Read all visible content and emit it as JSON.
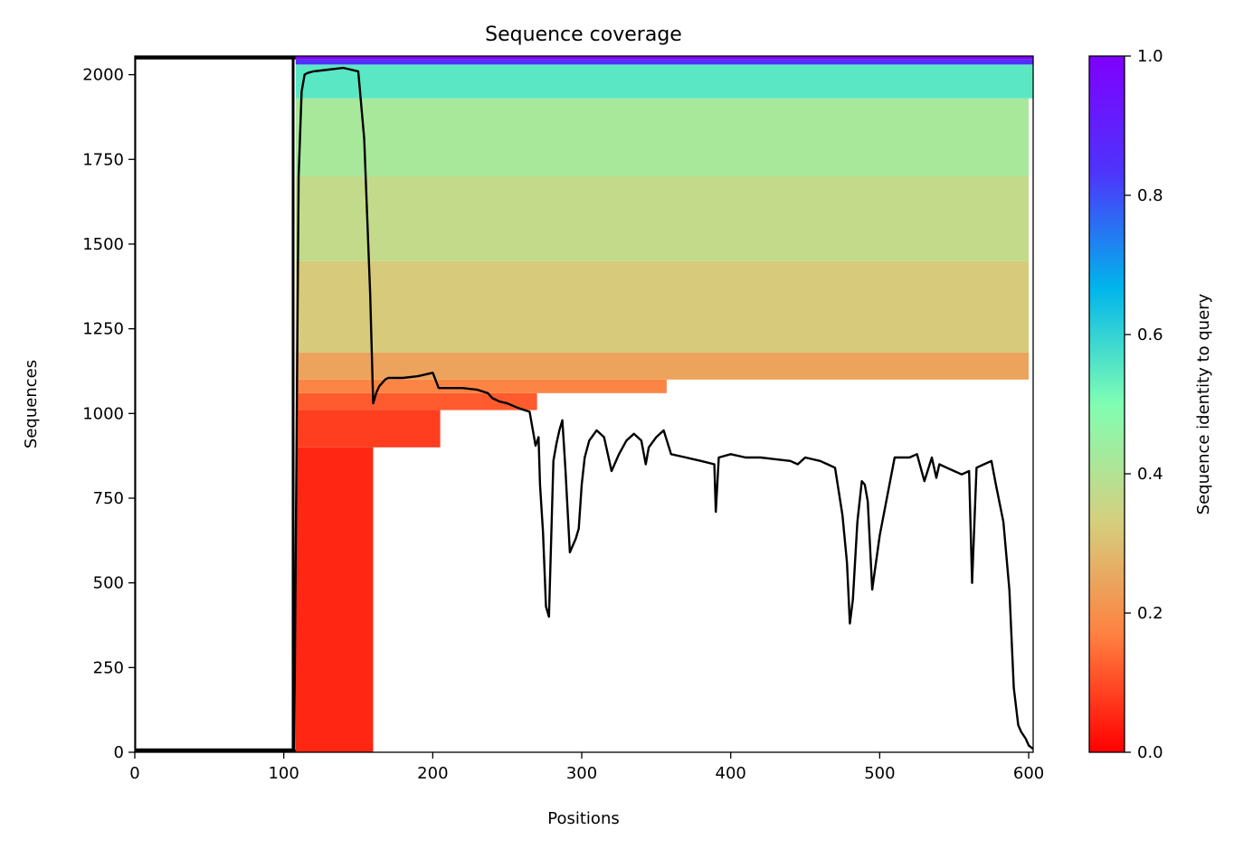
{
  "chart_data": {
    "type": "heatmap",
    "title": "Sequence coverage",
    "xlabel": "Positions",
    "ylabel": "Sequences",
    "xlim": [
      0,
      603
    ],
    "ylim": [
      0,
      2055
    ],
    "xticks": [
      0,
      100,
      200,
      300,
      400,
      500,
      600
    ],
    "yticks": [
      0,
      250,
      500,
      750,
      1000,
      1250,
      1500,
      1750,
      2000
    ],
    "grid": false,
    "colorbar": {
      "label": "Sequence identity to query",
      "range": [
        0,
        1
      ],
      "ticks": [
        "0.0",
        "0.2",
        "0.4",
        "0.6",
        "0.8",
        "1.0"
      ],
      "colormap": "rainbow_r",
      "colors": [
        "#ff0000",
        "#ff7f40",
        "#d4d07f",
        "#80feb3",
        "#00b5eb",
        "#4e34fb",
        "#7f00ff"
      ]
    },
    "coverage_blocks": [
      {
        "x": [
          108,
          160
        ],
        "y": [
          0,
          900
        ],
        "identity": 0.05
      },
      {
        "x": [
          108,
          205
        ],
        "y": [
          900,
          1010
        ],
        "identity": 0.08
      },
      {
        "x": [
          108,
          270
        ],
        "y": [
          1010,
          1060
        ],
        "identity": 0.12
      },
      {
        "x": [
          108,
          357
        ],
        "y": [
          1060,
          1100
        ],
        "identity": 0.18
      },
      {
        "x": [
          108,
          600
        ],
        "y": [
          1100,
          1180
        ],
        "identity": 0.24
      },
      {
        "x": [
          108,
          600
        ],
        "y": [
          1180,
          1450
        ],
        "identity": 0.32
      },
      {
        "x": [
          108,
          600
        ],
        "y": [
          1450,
          1700
        ],
        "identity": 0.37
      },
      {
        "x": [
          108,
          600
        ],
        "y": [
          1700,
          1930
        ],
        "identity": 0.42
      },
      {
        "x": [
          108,
          603
        ],
        "y": [
          1930,
          2030
        ],
        "identity": 0.55
      },
      {
        "x": [
          108,
          603
        ],
        "y": [
          2030,
          2045
        ],
        "identity": 0.85
      },
      {
        "x": [
          108,
          603
        ],
        "y": [
          2045,
          2055
        ],
        "identity": 1.0
      }
    ],
    "query_rows": [
      {
        "x": [
          0,
          108
        ],
        "y": [
          0,
          8
        ]
      },
      {
        "x": [
          0,
          108
        ],
        "y": [
          2045,
          2055
        ]
      }
    ],
    "coverage_line": {
      "x": [
        0,
        107,
        110,
        112,
        114,
        116,
        120,
        130,
        140,
        150,
        154,
        156,
        158,
        160,
        162,
        164,
        168,
        170,
        180,
        190,
        195,
        200,
        204,
        210,
        220,
        230,
        237,
        240,
        245,
        250,
        258,
        265,
        269,
        271,
        272,
        274,
        276,
        278,
        280,
        281,
        283,
        285,
        287,
        289,
        292,
        294,
        296,
        298,
        300,
        302,
        305,
        310,
        315,
        320,
        325,
        330,
        335,
        340,
        343,
        345,
        350,
        355,
        360,
        370,
        380,
        389,
        390,
        392,
        400,
        410,
        420,
        430,
        440,
        445,
        450,
        460,
        465,
        470,
        475,
        478,
        480,
        482,
        485,
        488,
        490,
        492,
        495,
        500,
        510,
        520,
        525,
        530,
        535,
        538,
        540,
        545,
        550,
        555,
        560,
        562,
        565,
        570,
        575,
        578,
        583,
        587,
        590,
        593,
        595,
        598,
        600,
        603
      ],
      "y": [
        8,
        8,
        1700,
        1950,
        2000,
        2005,
        2010,
        2015,
        2020,
        2010,
        1810,
        1580,
        1350,
        1030,
        1060,
        1080,
        1100,
        1105,
        1105,
        1110,
        1115,
        1120,
        1075,
        1075,
        1075,
        1070,
        1060,
        1045,
        1035,
        1030,
        1015,
        1005,
        905,
        930,
        790,
        650,
        430,
        400,
        710,
        860,
        910,
        950,
        980,
        840,
        590,
        610,
        630,
        660,
        790,
        870,
        920,
        950,
        930,
        830,
        880,
        920,
        940,
        920,
        850,
        900,
        930,
        950,
        880,
        870,
        860,
        850,
        710,
        870,
        880,
        870,
        870,
        865,
        860,
        850,
        870,
        860,
        850,
        840,
        700,
        560,
        380,
        450,
        680,
        800,
        790,
        740,
        480,
        640,
        870,
        870,
        880,
        800,
        870,
        810,
        850,
        840,
        830,
        820,
        830,
        500,
        840,
        850,
        860,
        790,
        680,
        480,
        190,
        80,
        60,
        40,
        20,
        10
      ]
    }
  }
}
